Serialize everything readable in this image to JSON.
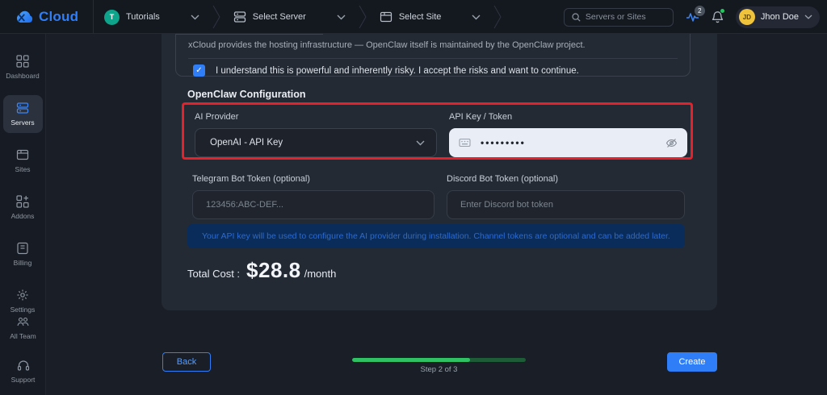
{
  "navbar": {
    "brand": "Cloud",
    "workspace": {
      "initial": "T",
      "label": "Tutorials"
    },
    "server_selector": "Select Server",
    "site_selector": "Select Site",
    "search_placeholder": "Servers or Sites",
    "activity_badge": "2",
    "user": {
      "initials": "JD",
      "name": "Jhon Doe"
    }
  },
  "sidebar": {
    "items": [
      {
        "label": "Dashboard",
        "active": false
      },
      {
        "label": "Servers",
        "active": true
      },
      {
        "label": "Sites",
        "active": false
      },
      {
        "label": "Addons",
        "active": false
      },
      {
        "label": "Billing",
        "active": false
      },
      {
        "label": "Settings",
        "active": false
      }
    ],
    "footer_items": [
      {
        "label": "All Team"
      },
      {
        "label": "Support"
      }
    ]
  },
  "form": {
    "intro_note": "xCloud provides the hosting infrastructure — OpenClaw itself is maintained by the OpenClaw project.",
    "risk_checkbox": {
      "checked": true,
      "label": "I understand this is powerful and inherently risky. I accept the risks and want to continue."
    },
    "section_title": "OpenClaw Configuration",
    "fields": {
      "ai_provider": {
        "label": "AI Provider",
        "value": "OpenAI - API Key"
      },
      "api_key": {
        "label": "API Key / Token",
        "masked_value": "•••••••••"
      },
      "telegram": {
        "label": "Telegram Bot Token (optional)",
        "placeholder": "123456:ABC-DEF..."
      },
      "discord": {
        "label": "Discord Bot Token (optional)",
        "placeholder": "Enter Discord bot token"
      }
    },
    "info_note": "Your API key will be used to configure the AI provider during installation. Channel tokens are optional and can be added later.",
    "total_cost": {
      "label": "Total Cost :",
      "amount": "$28.8",
      "period": "/month"
    }
  },
  "wizard": {
    "back_label": "Back",
    "create_label": "Create",
    "step_label": "Step 2 of 3",
    "progress_percent": 68
  },
  "colors": {
    "accent_blue": "#2f7ef8",
    "highlight_red": "#e62129",
    "progress_green": "#2fc163",
    "info_bg": "#0a2c5a",
    "info_text": "#2b6ad1",
    "avatar_teal": "#0ea48b",
    "avatar_yellow": "#f0c33c"
  }
}
